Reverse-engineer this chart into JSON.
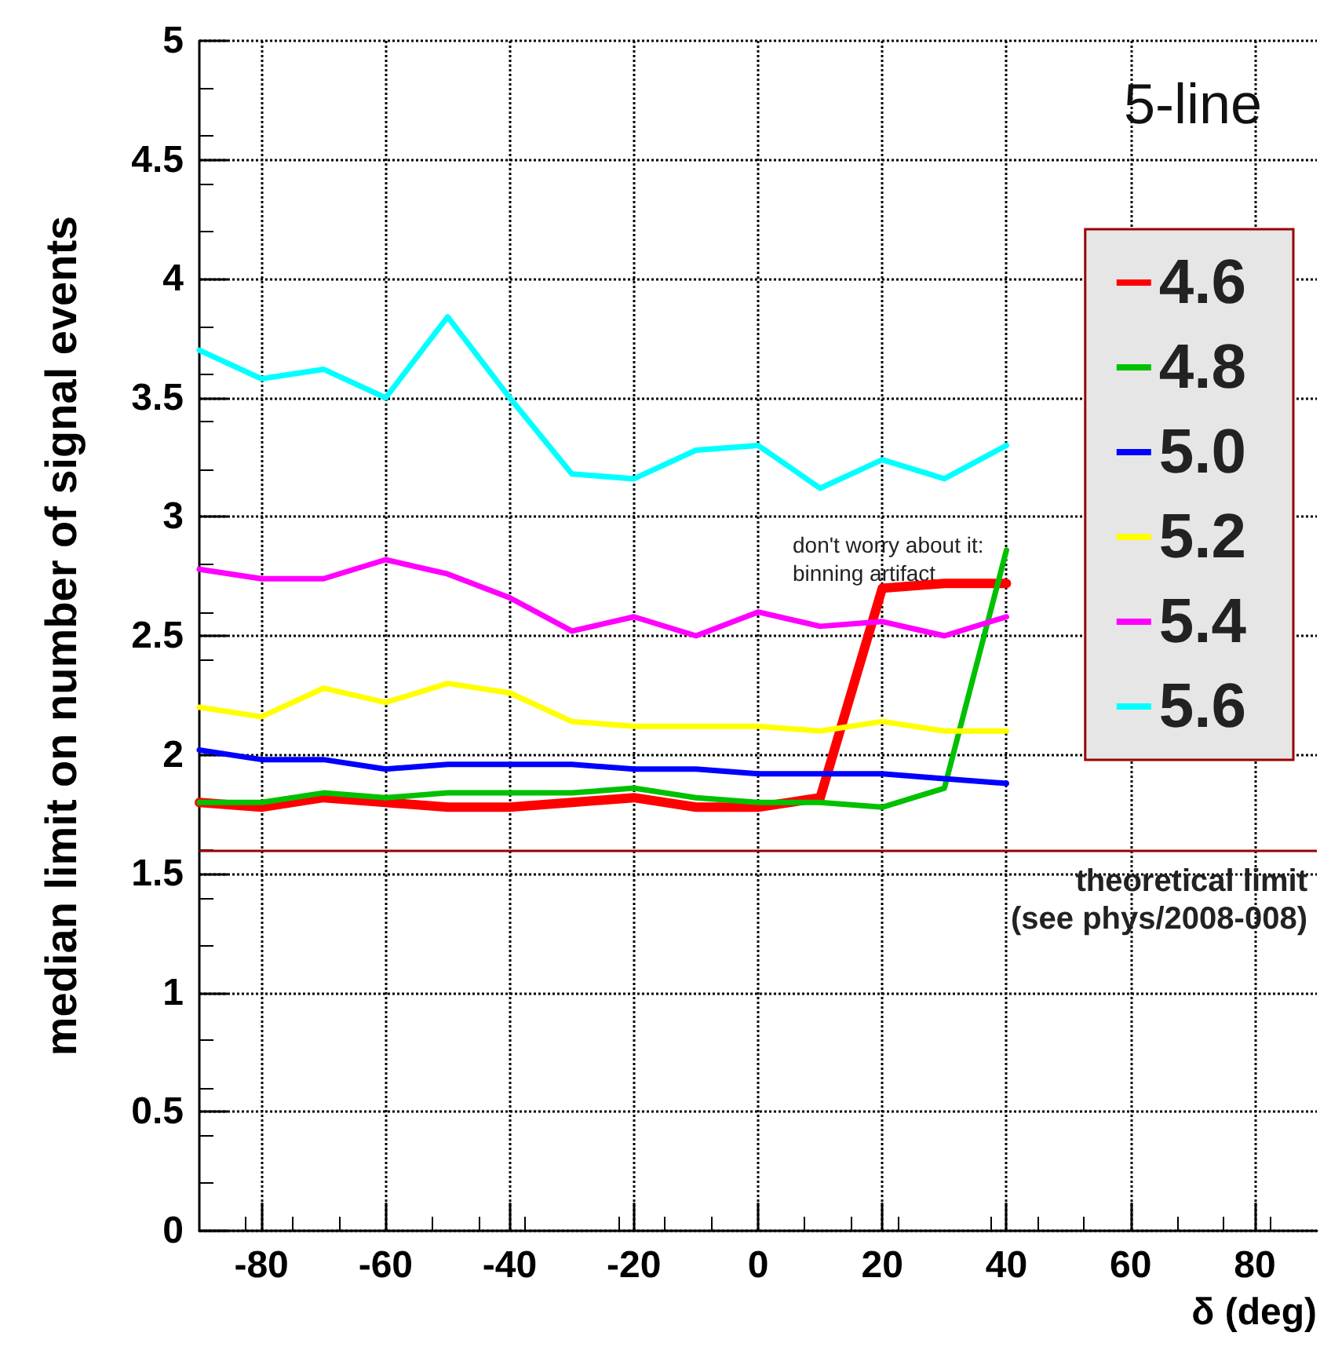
{
  "chart_data": {
    "type": "line",
    "xlabel": "δ (deg)",
    "ylabel": "median limit on number of signal events",
    "x": [
      -90,
      -80,
      -70,
      -60,
      -50,
      -40,
      -30,
      -20,
      -10,
      0,
      10,
      20,
      30,
      40
    ],
    "series": [
      {
        "name": "4.6",
        "color": "#ff0000",
        "values": [
          1.8,
          1.78,
          1.82,
          1.8,
          1.78,
          1.78,
          1.8,
          1.82,
          1.78,
          1.78,
          1.82,
          2.7,
          2.72,
          2.72
        ]
      },
      {
        "name": "4.8",
        "color": "#00c000",
        "values": [
          1.8,
          1.8,
          1.84,
          1.82,
          1.84,
          1.84,
          1.84,
          1.86,
          1.82,
          1.8,
          1.8,
          1.78,
          1.86,
          2.86
        ]
      },
      {
        "name": "5.0",
        "color": "#0000ff",
        "values": [
          2.02,
          1.98,
          1.98,
          1.94,
          1.96,
          1.96,
          1.96,
          1.94,
          1.94,
          1.92,
          1.92,
          1.92,
          1.9,
          1.88
        ]
      },
      {
        "name": "5.2",
        "color": "#ffff00",
        "values": [
          2.2,
          2.16,
          2.28,
          2.22,
          2.3,
          2.26,
          2.14,
          2.12,
          2.12,
          2.12,
          2.1,
          2.14,
          2.1,
          2.1
        ]
      },
      {
        "name": "5.4",
        "color": "#ff00ff",
        "values": [
          2.78,
          2.74,
          2.74,
          2.82,
          2.76,
          2.66,
          2.52,
          2.58,
          2.5,
          2.6,
          2.54,
          2.56,
          2.5,
          2.58
        ]
      },
      {
        "name": "5.6",
        "color": "#00ffff",
        "values": [
          3.7,
          3.58,
          3.62,
          3.5,
          3.84,
          3.5,
          3.18,
          3.16,
          3.28,
          3.3,
          3.12,
          3.24,
          3.16,
          3.3
        ]
      }
    ],
    "xlim": [
      -90,
      90
    ],
    "xticks": [
      -80,
      -60,
      -40,
      -20,
      0,
      20,
      40,
      60,
      80
    ],
    "ylim": [
      0,
      5
    ],
    "yticks": [
      0,
      0.5,
      1,
      1.5,
      2,
      2.5,
      3,
      3.5,
      4,
      4.5,
      5
    ],
    "ref_lines": [
      {
        "axis": "y",
        "value": 1.6,
        "label": "theoretical limit\n(see phys/2008-008)",
        "color": "#990000"
      }
    ],
    "annotations": [
      "5-line",
      "don't worry about it:\nbinning artifact"
    ],
    "grid": true,
    "legend": "top right",
    "marker": "none",
    "line_style": "solid"
  }
}
